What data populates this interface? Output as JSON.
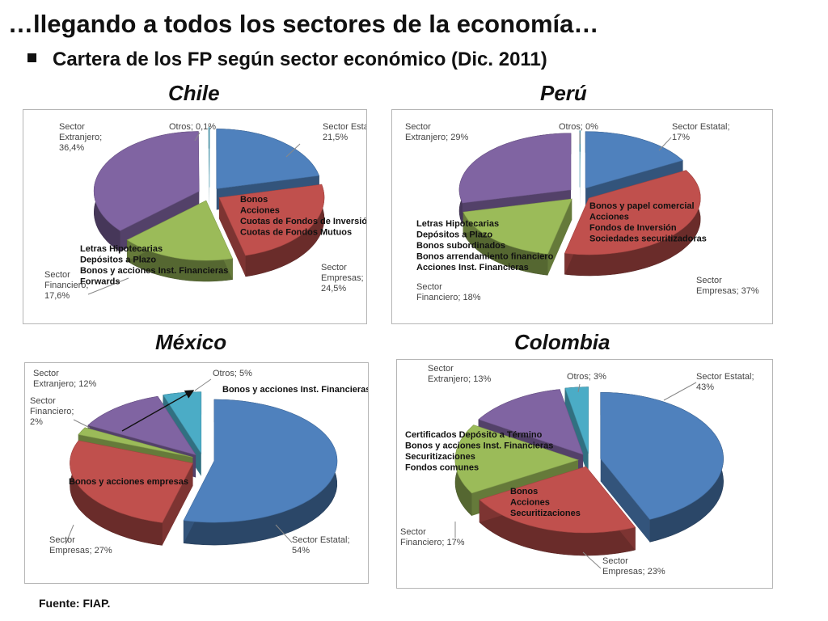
{
  "slide": {
    "title": "…llegando a todos los sectores de la economía…",
    "subtitle": "Cartera de los FP según sector económico (Dic. 2011)",
    "source": "Fuente: FIAP."
  },
  "colors": {
    "estatal": "#4F81BD",
    "empresas": "#C0504D",
    "financiero": "#9BBB59",
    "extranjero": "#8064A2",
    "otros": "#4BACC6"
  },
  "chart_data": [
    {
      "type": "pie",
      "title": "Chile",
      "slices": [
        {
          "key": "estatal",
          "label": [
            "Sector Estatal;",
            "21,5%"
          ],
          "value": 21.5
        },
        {
          "key": "empresas",
          "label": [
            "Sector",
            "Empresas;",
            "24,5%"
          ],
          "value": 24.5
        },
        {
          "key": "financiero",
          "label": [
            "Sector",
            "Financiero;",
            "17,6%"
          ],
          "value": 17.6
        },
        {
          "key": "extranjero",
          "label": [
            "Sector",
            "Extranjero;",
            "36,4%"
          ],
          "value": 36.4
        },
        {
          "key": "otros",
          "label": [
            "Otros; 0,1%"
          ],
          "value": 0.1
        }
      ],
      "annotations": [
        [
          "Bonos",
          "Acciones",
          "Cuotas de Fondos de Inversión",
          "Cuotas de Fondos Mutuos"
        ],
        [
          "Letras Hipotecarias",
          "Depósitos a Plazo",
          "Bonos  y acciones Inst. Financieras",
          "Forwards"
        ]
      ]
    },
    {
      "type": "pie",
      "title": "Perú",
      "slices": [
        {
          "key": "estatal",
          "label": [
            "Sector Estatal;",
            "17%"
          ],
          "value": 17
        },
        {
          "key": "empresas",
          "label": [
            "Sector",
            "Empresas; 37%"
          ],
          "value": 37
        },
        {
          "key": "financiero",
          "label": [
            "Sector",
            "Financiero; 18%"
          ],
          "value": 18
        },
        {
          "key": "extranjero",
          "label": [
            "Sector",
            "Extranjero; 29%"
          ],
          "value": 29
        },
        {
          "key": "otros",
          "label": [
            "Otros; 0%"
          ],
          "value": 0
        }
      ],
      "annotations": [
        [
          "Bonos y papel comercial",
          "Acciones",
          "Fondos de Inversión",
          "Sociedades securitizadoras"
        ],
        [
          "Letras Hipotecarias",
          "Depósitos a Plazo",
          "Bonos subordinados",
          "Bonos arrendamiento financiero",
          "Acciones Inst. Financieras"
        ]
      ]
    },
    {
      "type": "pie",
      "title": "México",
      "slices": [
        {
          "key": "estatal",
          "label": [
            "Sector Estatal;",
            "54%"
          ],
          "value": 54
        },
        {
          "key": "empresas",
          "label": [
            "Sector",
            "Empresas; 27%"
          ],
          "value": 27
        },
        {
          "key": "financiero",
          "label": [
            "Sector",
            "Financiero;",
            "2%"
          ],
          "value": 2
        },
        {
          "key": "extranjero",
          "label": [
            "Sector",
            "Extranjero; 12%"
          ],
          "value": 12
        },
        {
          "key": "otros",
          "label": [
            "Otros; 5%"
          ],
          "value": 5
        }
      ],
      "annotations": [
        [
          "Bonos y acciones Inst. Financieras"
        ],
        [
          "Bonos y acciones empresas"
        ]
      ]
    },
    {
      "type": "pie",
      "title": "Colombia",
      "slices": [
        {
          "key": "estatal",
          "label": [
            "Sector Estatal;",
            "43%"
          ],
          "value": 43
        },
        {
          "key": "empresas",
          "label": [
            "Sector",
            "Empresas; 23%"
          ],
          "value": 23
        },
        {
          "key": "financiero",
          "label": [
            "Sector",
            "Financiero; 17%"
          ],
          "value": 17
        },
        {
          "key": "extranjero",
          "label": [
            "Sector",
            "Extranjero; 13%"
          ],
          "value": 13
        },
        {
          "key": "otros",
          "label": [
            "Otros; 3%"
          ],
          "value": 3
        }
      ],
      "annotations": [
        [
          "Certificados Depósito a Término",
          "Bonos  y acciones Inst. Financieras",
          "Securitizaciones",
          "Fondos comunes"
        ],
        [
          "Bonos",
          "Acciones",
          "Securitizaciones"
        ]
      ]
    }
  ]
}
